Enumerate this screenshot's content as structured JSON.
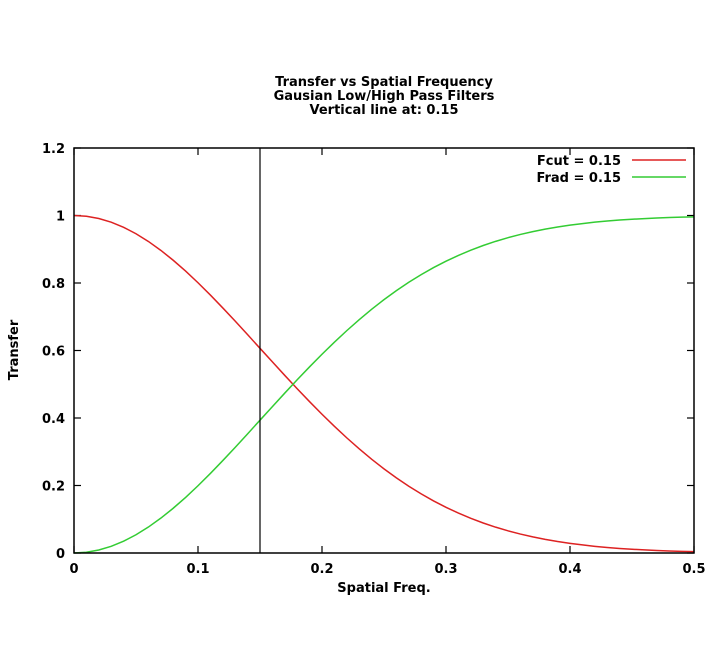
{
  "chart_data": {
    "type": "line",
    "title_lines": [
      "Transfer vs Spatial Frequency",
      "Gausian Low/High Pass Filters",
      "Vertical line at: 0.15"
    ],
    "xlabel": "Spatial Freq.",
    "ylabel": "Transfer",
    "xlim": [
      0,
      0.5
    ],
    "ylim": [
      0,
      1.2
    ],
    "x_tick_values": [
      0,
      0.1,
      0.2,
      0.3,
      0.4,
      0.5
    ],
    "x_tick_labels": [
      "0",
      "0.1",
      "0.2",
      "0.3",
      "0.4",
      "0.5"
    ],
    "y_tick_values": [
      0,
      0.2,
      0.4,
      0.6,
      0.8,
      1,
      1.2
    ],
    "y_tick_labels": [
      "0",
      "0.2",
      "0.4",
      "0.6",
      "0.8",
      "1",
      "1.2"
    ],
    "grid": false,
    "legend_position": "top-right-inside",
    "vertical_line_x": 0.15,
    "axis_color": "#000000",
    "background": "#ffffff",
    "legend": [
      {
        "label": "Fcut = 0.15",
        "color": "#dd2222"
      },
      {
        "label": "Frad = 0.15",
        "color": "#33cc33"
      }
    ],
    "x": [
      0,
      0.01,
      0.02,
      0.03,
      0.04,
      0.05,
      0.06,
      0.07,
      0.08,
      0.09,
      0.1,
      0.11,
      0.12,
      0.13,
      0.14,
      0.15,
      0.16,
      0.17,
      0.18,
      0.19,
      0.2,
      0.21,
      0.22,
      0.23,
      0.24,
      0.25,
      0.26,
      0.27,
      0.28,
      0.29,
      0.3,
      0.31,
      0.32,
      0.33,
      0.34,
      0.35,
      0.36,
      0.37,
      0.38,
      0.39,
      0.4,
      0.41,
      0.42,
      0.43,
      0.44,
      0.45,
      0.46,
      0.47,
      0.48,
      0.49,
      0.5
    ],
    "series": [
      {
        "name": "Fcut = 0.15",
        "color": "#dd2222",
        "values": [
          1.0,
          0.9978,
          0.9912,
          0.9802,
          0.9651,
          0.946,
          0.9231,
          0.8968,
          0.8674,
          0.8353,
          0.8007,
          0.7642,
          0.7261,
          0.6869,
          0.6469,
          0.6065,
          0.5662,
          0.5261,
          0.4867,
          0.4483,
          0.4111,
          0.3753,
          0.3411,
          0.3087,
          0.278,
          0.2493,
          0.2226,
          0.1979,
          0.1751,
          0.1543,
          0.1353,
          0.1182,
          0.1027,
          0.0889,
          0.0766,
          0.0657,
          0.0561,
          0.0477,
          0.0404,
          0.034,
          0.0286,
          0.0239,
          0.0198,
          0.0164,
          0.0135,
          0.0111,
          0.0091,
          0.0074,
          0.006,
          0.0048,
          0.0039
        ]
      },
      {
        "name": "Frad = 0.15",
        "color": "#33cc33",
        "values": [
          0.0,
          0.0022,
          0.0088,
          0.0198,
          0.0349,
          0.054,
          0.0769,
          0.1032,
          0.1326,
          0.1647,
          0.1993,
          0.2358,
          0.2739,
          0.3131,
          0.3531,
          0.3935,
          0.4338,
          0.4739,
          0.5133,
          0.5517,
          0.5889,
          0.6247,
          0.6589,
          0.6913,
          0.722,
          0.7507,
          0.7774,
          0.8021,
          0.8249,
          0.8457,
          0.8647,
          0.8818,
          0.8973,
          0.9111,
          0.9234,
          0.9343,
          0.9439,
          0.9523,
          0.9596,
          0.966,
          0.9714,
          0.9761,
          0.9802,
          0.9836,
          0.9865,
          0.9889,
          0.9909,
          0.9926,
          0.994,
          0.9952,
          0.9961
        ]
      }
    ]
  }
}
